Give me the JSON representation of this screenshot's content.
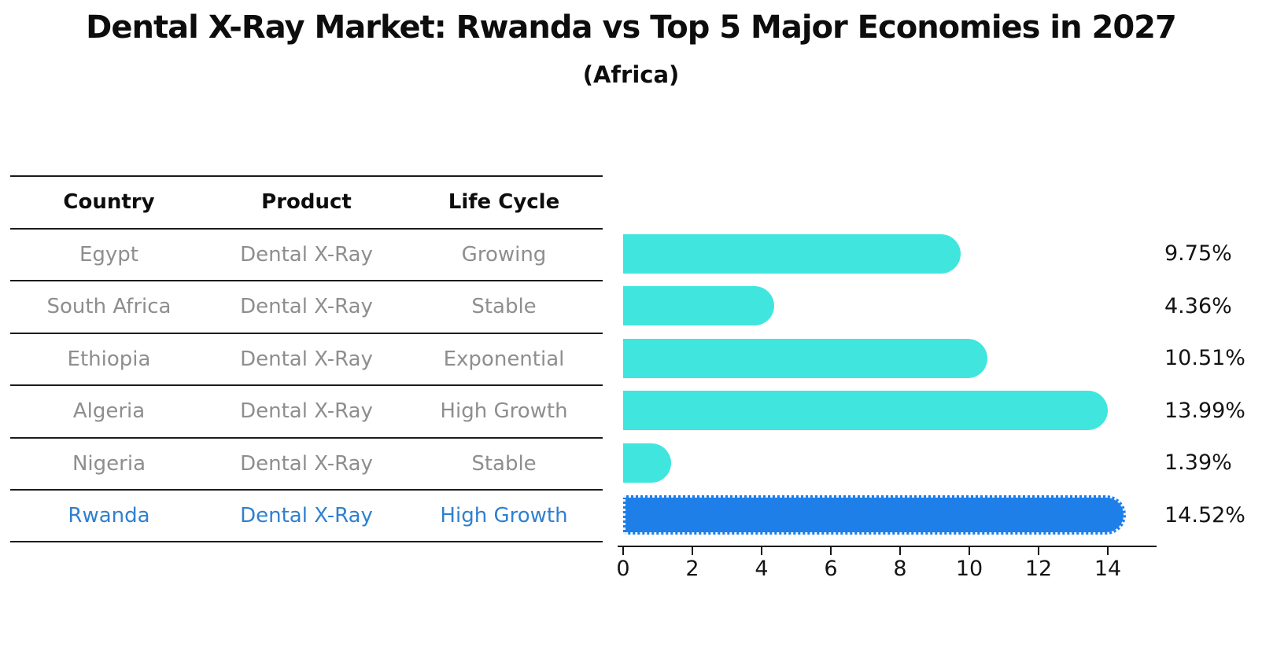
{
  "title": "Dental X-Ray Market: Rwanda vs Top 5 Major Economies in 2027",
  "subtitle": "(Africa)",
  "table": {
    "headers": [
      "Country",
      "Product",
      "Life Cycle"
    ],
    "rows": [
      {
        "country": "Egypt",
        "product": "Dental X-Ray",
        "life_cycle": "Growing"
      },
      {
        "country": "South Africa",
        "product": "Dental X-Ray",
        "life_cycle": "Stable"
      },
      {
        "country": "Ethiopia",
        "product": "Dental X-Ray",
        "life_cycle": "Exponential"
      },
      {
        "country": "Algeria",
        "product": "Dental X-Ray",
        "life_cycle": "High Growth"
      },
      {
        "country": "Nigeria",
        "product": "Dental X-Ray",
        "life_cycle": "Stable"
      },
      {
        "country": "Rwanda",
        "product": "Dental X-Ray",
        "life_cycle": "High Growth"
      }
    ],
    "highlighted_row": "Rwanda"
  },
  "chart_data": {
    "type": "bar",
    "orientation": "horizontal",
    "categories": [
      "Egypt",
      "South Africa",
      "Ethiopia",
      "Algeria",
      "Nigeria",
      "Rwanda"
    ],
    "values": [
      9.75,
      4.36,
      10.51,
      13.99,
      1.39,
      14.52
    ],
    "labels": [
      "9.75%",
      "4.36%",
      "10.51%",
      "13.99%",
      "1.39%",
      "14.52%"
    ],
    "xticks": [
      "0",
      "2",
      "4",
      "6",
      "8",
      "10",
      "12",
      "14"
    ],
    "xlim": [
      0,
      15.36
    ],
    "grid": false,
    "legend": "none",
    "highlight_index": 5,
    "bar_color": "#40e6dd",
    "highlight_bar_color": "#1f7fe8",
    "highlight_text_color": "#2f80cf",
    "row_text_color": "#8e8e8e",
    "axis_color": "#141414"
  }
}
